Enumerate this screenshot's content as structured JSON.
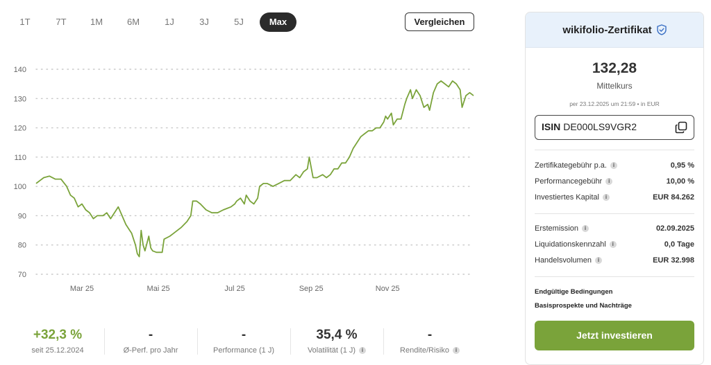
{
  "periods": [
    "1T",
    "7T",
    "1M",
    "6M",
    "1J",
    "3J",
    "5J",
    "Max"
  ],
  "active_period": "Max",
  "compare_label": "Vergleichen",
  "colors": {
    "accent": "#7aa33a",
    "card_header": "#e8f1fb",
    "active_tab": "#2b2b2b"
  },
  "chart_data": {
    "type": "line",
    "ylim": [
      70,
      140
    ],
    "yticks": [
      140,
      130,
      120,
      110,
      100,
      90,
      80,
      70
    ],
    "xtick_labels": [
      "Mar 25",
      "Mai 25",
      "Jul 25",
      "Sep 25",
      "Nov 25"
    ],
    "xtick_positions": [
      1.2,
      3.2,
      5.2,
      7.2,
      9.2
    ],
    "xlim": [
      0,
      10.5
    ],
    "grid": true,
    "series": [
      {
        "color": "#7aa33a",
        "points": [
          [
            0,
            101
          ],
          [
            0.1,
            102
          ],
          [
            0.2,
            103
          ],
          [
            0.35,
            103.5
          ],
          [
            0.5,
            102.5
          ],
          [
            0.65,
            102.5
          ],
          [
            0.8,
            100
          ],
          [
            0.9,
            97
          ],
          [
            1.0,
            96
          ],
          [
            1.1,
            93
          ],
          [
            1.2,
            94
          ],
          [
            1.3,
            92
          ],
          [
            1.4,
            91
          ],
          [
            1.5,
            89
          ],
          [
            1.6,
            90
          ],
          [
            1.75,
            90
          ],
          [
            1.85,
            91
          ],
          [
            1.95,
            89
          ],
          [
            2.05,
            91
          ],
          [
            2.15,
            93
          ],
          [
            2.25,
            90
          ],
          [
            2.35,
            87
          ],
          [
            2.45,
            85
          ],
          [
            2.5,
            84
          ],
          [
            2.6,
            80
          ],
          [
            2.65,
            77
          ],
          [
            2.7,
            76
          ],
          [
            2.75,
            85
          ],
          [
            2.8,
            80
          ],
          [
            2.85,
            78
          ],
          [
            2.95,
            83
          ],
          [
            3.0,
            79
          ],
          [
            3.05,
            78
          ],
          [
            3.15,
            77.5
          ],
          [
            3.3,
            77.5
          ],
          [
            3.35,
            82
          ],
          [
            3.5,
            83
          ],
          [
            3.6,
            84
          ],
          [
            3.8,
            86
          ],
          [
            3.95,
            88
          ],
          [
            4.05,
            90
          ],
          [
            4.1,
            95
          ],
          [
            4.2,
            95
          ],
          [
            4.3,
            94
          ],
          [
            4.45,
            92
          ],
          [
            4.6,
            91
          ],
          [
            4.75,
            91
          ],
          [
            4.9,
            92
          ],
          [
            5.0,
            92.5
          ],
          [
            5.1,
            93
          ],
          [
            5.2,
            94
          ],
          [
            5.25,
            95
          ],
          [
            5.35,
            96
          ],
          [
            5.45,
            94
          ],
          [
            5.5,
            97
          ],
          [
            5.6,
            95
          ],
          [
            5.7,
            94
          ],
          [
            5.8,
            96
          ],
          [
            5.85,
            100
          ],
          [
            5.95,
            101
          ],
          [
            6.05,
            101
          ],
          [
            6.2,
            100
          ],
          [
            6.35,
            101
          ],
          [
            6.5,
            102
          ],
          [
            6.65,
            102
          ],
          [
            6.8,
            104
          ],
          [
            6.9,
            103
          ],
          [
            7.0,
            105
          ],
          [
            7.1,
            106
          ],
          [
            7.15,
            110
          ],
          [
            7.25,
            103
          ],
          [
            7.35,
            103
          ],
          [
            7.5,
            104
          ],
          [
            7.6,
            103
          ],
          [
            7.7,
            104
          ],
          [
            7.8,
            106
          ],
          [
            7.9,
            106
          ],
          [
            8.0,
            108
          ],
          [
            8.1,
            108
          ],
          [
            8.2,
            110
          ],
          [
            8.3,
            113
          ],
          [
            8.4,
            115
          ],
          [
            8.5,
            117
          ],
          [
            8.6,
            118
          ],
          [
            8.7,
            119
          ],
          [
            8.8,
            119
          ],
          [
            8.9,
            120
          ],
          [
            9.0,
            120
          ],
          [
            9.1,
            122
          ],
          [
            9.15,
            124
          ],
          [
            9.2,
            123
          ],
          [
            9.3,
            125
          ],
          [
            9.35,
            121
          ],
          [
            9.45,
            123
          ],
          [
            9.55,
            123
          ],
          [
            9.65,
            128
          ],
          [
            9.7,
            130
          ],
          [
            9.8,
            133
          ],
          [
            9.85,
            130
          ],
          [
            9.95,
            133
          ],
          [
            10.05,
            131
          ],
          [
            10.15,
            127
          ],
          [
            10.25,
            128
          ],
          [
            10.3,
            126
          ],
          [
            10.4,
            132
          ],
          [
            10.5,
            135
          ],
          [
            10.6,
            136
          ],
          [
            10.7,
            135
          ],
          [
            10.8,
            134
          ],
          [
            10.9,
            136
          ],
          [
            11.0,
            135
          ],
          [
            11.1,
            133
          ],
          [
            11.15,
            127
          ],
          [
            11.25,
            131
          ],
          [
            11.35,
            132
          ],
          [
            11.45,
            131
          ]
        ]
      }
    ]
  },
  "stats": [
    {
      "value": "+32,3 %",
      "label": "seit 25.12.2024",
      "green": true,
      "info": false
    },
    {
      "value": "-",
      "label": "Ø-Perf. pro Jahr",
      "green": false,
      "info": false
    },
    {
      "value": "-",
      "label": "Performance (1 J)",
      "green": false,
      "info": false
    },
    {
      "value": "35,4 %",
      "label": "Volatilität (1 J)",
      "green": false,
      "info": true
    },
    {
      "value": "-",
      "label": "Rendite/Risiko",
      "green": false,
      "info": true
    }
  ],
  "card": {
    "title": "wikifolio-Zertifikat",
    "price": "132,28",
    "price_label": "Mittelkurs",
    "price_meta": "per 23.12.2025 um 21:59 • in EUR",
    "isin_label": "ISIN",
    "isin_value": "DE000LS9VGR2",
    "fees": [
      {
        "label": "Zertifikategebühr p.a.",
        "value": "0,95 %"
      },
      {
        "label": "Performancegebühr",
        "value": "10,00 %"
      },
      {
        "label": "Investiertes Kapital",
        "value": "EUR 84.262"
      }
    ],
    "details": [
      {
        "label": "Erstemission",
        "value": "02.09.2025"
      },
      {
        "label": "Liquidationskennzahl",
        "value": "0,0 Tage"
      },
      {
        "label": "Handelsvolumen",
        "value": "EUR 32.998"
      }
    ],
    "links": [
      "Endgültige Bedingungen",
      "Basisprospekte und Nachträge"
    ],
    "invest_label": "Jetzt investieren"
  }
}
